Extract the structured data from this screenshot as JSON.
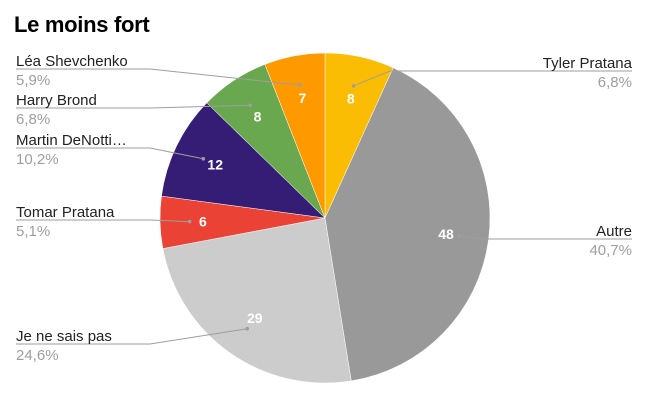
{
  "chart_data": {
    "type": "pie",
    "title": "Le moins fort",
    "slices": [
      {
        "label": "Tyler Pratana",
        "value": 8,
        "percent": "6,8%",
        "color": "#fbbc04"
      },
      {
        "label": "Autre",
        "value": 48,
        "percent": "40,7%",
        "color": "#999999"
      },
      {
        "label": "Je ne sais pas",
        "value": 29,
        "percent": "24,6%",
        "color": "#cccccc"
      },
      {
        "label": "Tomar Pratana",
        "value": 6,
        "percent": "5,1%",
        "color": "#ea4335"
      },
      {
        "label": "Martin DeNotti…",
        "value": 12,
        "percent": "10,2%",
        "color": "#351c75"
      },
      {
        "label": "Harry Brond",
        "value": 8,
        "percent": "6,8%",
        "color": "#6aa84f"
      },
      {
        "label": "Léa Shevchenko",
        "value": 7,
        "percent": "5,9%",
        "color": "#ff9900"
      }
    ],
    "legend": "labels with leader lines"
  }
}
